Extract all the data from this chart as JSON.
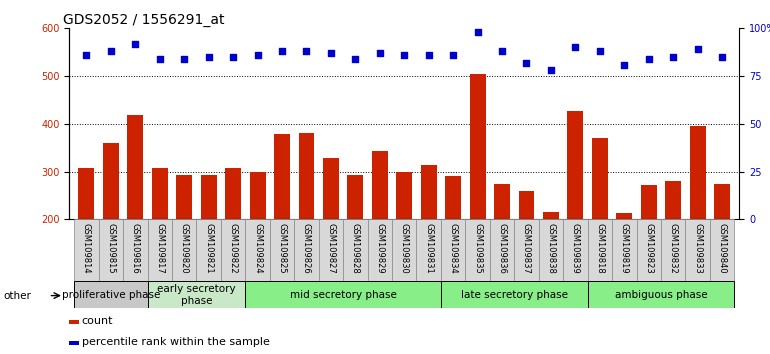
{
  "title": "GDS2052 / 1556291_at",
  "samples": [
    "GSM109814",
    "GSM109815",
    "GSM109816",
    "GSM109817",
    "GSM109820",
    "GSM109821",
    "GSM109822",
    "GSM109824",
    "GSM109825",
    "GSM109826",
    "GSM109827",
    "GSM109828",
    "GSM109829",
    "GSM109830",
    "GSM109831",
    "GSM109834",
    "GSM109835",
    "GSM109836",
    "GSM109837",
    "GSM109838",
    "GSM109839",
    "GSM109818",
    "GSM109819",
    "GSM109823",
    "GSM109832",
    "GSM109833",
    "GSM109840"
  ],
  "counts": [
    308,
    360,
    418,
    308,
    294,
    293,
    308,
    300,
    378,
    380,
    328,
    293,
    343,
    300,
    313,
    290,
    505,
    275,
    260,
    215,
    428,
    370,
    213,
    272,
    280,
    395,
    275
  ],
  "percentiles": [
    86,
    88,
    92,
    84,
    84,
    85,
    85,
    86,
    88,
    88,
    87,
    84,
    87,
    86,
    86,
    86,
    98,
    88,
    82,
    78,
    90,
    88,
    81,
    84,
    85,
    89,
    85
  ],
  "bar_color": "#cc2200",
  "dot_color": "#0000cc",
  "ylim_left": [
    200,
    600
  ],
  "ylim_right": [
    0,
    100
  ],
  "yticks_left": [
    200,
    300,
    400,
    500,
    600
  ],
  "yticks_right": [
    0,
    25,
    50,
    75,
    100
  ],
  "ytick_labels_right": [
    "0",
    "25",
    "50",
    "75",
    "100%"
  ],
  "grid_values": [
    300,
    400,
    500
  ],
  "phases": [
    {
      "label": "proliferative phase",
      "start": 0,
      "end": 3,
      "color": "#c8c8c8"
    },
    {
      "label": "early secretory\nphase",
      "start": 3,
      "end": 7,
      "color": "#c8e8c8"
    },
    {
      "label": "mid secretory phase",
      "start": 7,
      "end": 15,
      "color": "#88ee88"
    },
    {
      "label": "late secretory phase",
      "start": 15,
      "end": 21,
      "color": "#88ee88"
    },
    {
      "label": "ambiguous phase",
      "start": 21,
      "end": 27,
      "color": "#88ee88"
    }
  ],
  "other_label": "other",
  "legend_items": [
    {
      "label": "count",
      "color": "#cc2200"
    },
    {
      "label": "percentile rank within the sample",
      "color": "#0000cc"
    }
  ],
  "title_fontsize": 10,
  "tick_fontsize": 6,
  "phase_fontsize": 7.5,
  "bar_width": 0.65,
  "tick_label_bg": "#d8d8d8",
  "tick_label_border": "#888888"
}
